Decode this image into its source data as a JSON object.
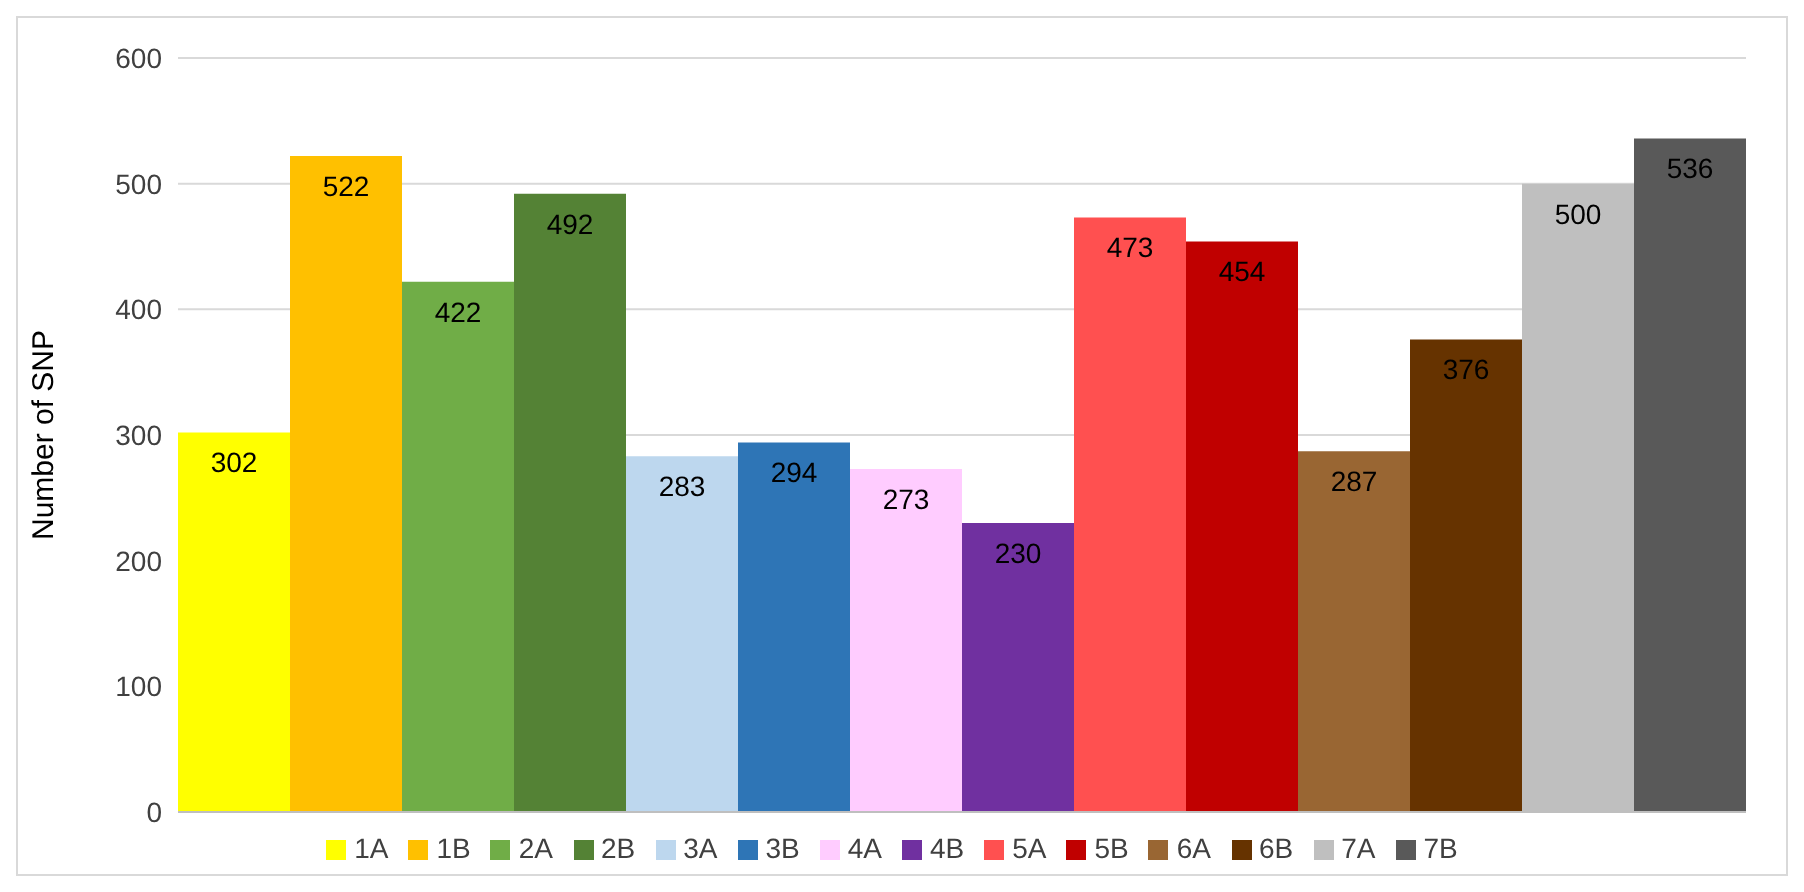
{
  "chart_data": {
    "type": "bar",
    "ylabel": "Number of SNP",
    "categories": [
      null
    ],
    "ylim": [
      0,
      600
    ],
    "yticks": [
      0,
      100,
      200,
      300,
      400,
      500,
      600
    ],
    "grid": "y",
    "legend": "bottom",
    "data_labels": true,
    "series": [
      {
        "name": "1A",
        "color": "#ffff00",
        "values": [
          302
        ]
      },
      {
        "name": "1B",
        "color": "#ffc000",
        "values": [
          522
        ]
      },
      {
        "name": "2A",
        "color": "#70ad47",
        "values": [
          422
        ]
      },
      {
        "name": "2B",
        "color": "#548235",
        "values": [
          492
        ]
      },
      {
        "name": "3A",
        "color": "#bdd7ee",
        "values": [
          283
        ]
      },
      {
        "name": "3B",
        "color": "#2e75b6",
        "values": [
          294
        ]
      },
      {
        "name": "4A",
        "color": "#ffccff",
        "values": [
          273
        ]
      },
      {
        "name": "4B",
        "color": "#7030a0",
        "values": [
          230
        ]
      },
      {
        "name": "5A",
        "color": "#ff5050",
        "values": [
          473
        ]
      },
      {
        "name": "5B",
        "color": "#c00000",
        "values": [
          454
        ]
      },
      {
        "name": "6A",
        "color": "#996633",
        "values": [
          287
        ]
      },
      {
        "name": "6B",
        "color": "#663300",
        "values": [
          376
        ]
      },
      {
        "name": "7A",
        "color": "#bfbfbf",
        "values": [
          500
        ]
      },
      {
        "name": "7B",
        "color": "#595959",
        "values": [
          536
        ]
      }
    ]
  }
}
